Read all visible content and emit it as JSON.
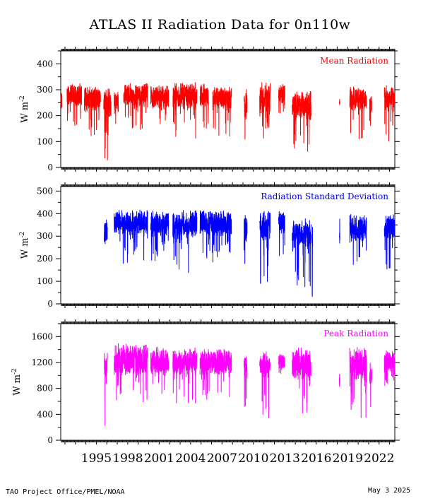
{
  "title": "ATLAS II Radiation Data for 0n110w",
  "footer": {
    "left": "TAO Project Office/PMEL/NOAA",
    "right": "May  3 2025"
  },
  "colors": {
    "mean": "#ff0000",
    "std": "#0000ff",
    "peak": "#ff00ff"
  },
  "chart_data": [
    {
      "type": "line",
      "title": "",
      "series": [
        {
          "name": "Mean Radiation",
          "color": "#ff0000"
        }
      ],
      "ylabel": "W m-2",
      "ylim": [
        0,
        450
      ],
      "yticks": [
        0,
        100,
        200,
        300,
        400
      ],
      "xlim": [
        1991.6,
        2023.5
      ],
      "segments": [
        [
          1991.6,
          1991.72,
          240,
          300,
          150
        ],
        [
          1992.2,
          1993.6,
          255,
          330,
          150
        ],
        [
          1993.85,
          1995.4,
          240,
          320,
          120
        ],
        [
          1995.7,
          1996.4,
          240,
          310,
          20
        ],
        [
          1996.7,
          1997.1,
          250,
          305,
          20
        ],
        [
          1997.6,
          1999.9,
          260,
          330,
          140
        ],
        [
          2000.2,
          2001.9,
          250,
          320,
          130
        ],
        [
          2002.3,
          2004.6,
          255,
          335,
          100
        ],
        [
          2004.9,
          2005.7,
          255,
          330,
          150
        ],
        [
          2006.1,
          2007.9,
          250,
          320,
          120
        ],
        [
          2009.1,
          2009.4,
          220,
          305,
          70
        ],
        [
          2010.6,
          2011.6,
          250,
          330,
          60
        ],
        [
          2012.4,
          2013.0,
          260,
          325,
          200
        ],
        [
          2013.7,
          2015.5,
          220,
          300,
          50
        ],
        [
          2018.2,
          2018.25,
          250,
          270,
          190
        ],
        [
          2019.2,
          2020.8,
          250,
          315,
          95
        ],
        [
          2021.1,
          2021.3,
          230,
          280,
          150
        ],
        [
          2022.5,
          2023.5,
          250,
          320,
          90
        ]
      ],
      "label_color": "#ff0000"
    },
    {
      "type": "line",
      "title": "",
      "series": [
        {
          "name": "Radiation Standard Deviation",
          "color": "#0000ff"
        }
      ],
      "ylabel": "W m-2",
      "ylim": [
        0,
        520
      ],
      "yticks": [
        0,
        100,
        200,
        300,
        400,
        500
      ],
      "xlim": [
        1991.6,
        2023.5
      ],
      "segments": [
        [
          1995.75,
          1996.05,
          320,
          410,
          20
        ],
        [
          1996.7,
          1999.9,
          340,
          420,
          170
        ],
        [
          2000.2,
          2001.9,
          330,
          415,
          170
        ],
        [
          2002.3,
          2004.6,
          330,
          420,
          130
        ],
        [
          2004.9,
          2007.9,
          330,
          420,
          180
        ],
        [
          2009.1,
          2009.4,
          300,
          400,
          110
        ],
        [
          2010.6,
          2011.6,
          330,
          420,
          80
        ],
        [
          2012.4,
          2013.0,
          340,
          420,
          210
        ],
        [
          2013.7,
          2015.5,
          300,
          380,
          70
        ],
        [
          2015.6,
          2015.65,
          300,
          360,
          20
        ],
        [
          2018.2,
          2018.25,
          300,
          380,
          20
        ],
        [
          2019.2,
          2020.8,
          320,
          400,
          130
        ],
        [
          2022.5,
          2023.5,
          330,
          400,
          150
        ]
      ],
      "label_color": "#0000ff"
    },
    {
      "type": "line",
      "title": "",
      "series": [
        {
          "name": "Peak Radiation",
          "color": "#ff00ff"
        }
      ],
      "ylabel": "W m-2",
      "ylim": [
        0,
        1800
      ],
      "yticks": [
        0,
        400,
        800,
        1200,
        1600
      ],
      "xlim": [
        1991.6,
        2023.5
      ],
      "segments": [
        [
          1995.75,
          1996.05,
          1100,
          1450,
          200
        ],
        [
          1996.7,
          1999.9,
          1120,
          1500,
          580
        ],
        [
          2000.2,
          2001.9,
          1100,
          1450,
          700
        ],
        [
          2002.3,
          2004.6,
          1120,
          1440,
          560
        ],
        [
          2004.9,
          2007.9,
          1120,
          1420,
          620
        ],
        [
          2009.1,
          2009.4,
          1050,
          1350,
          450
        ],
        [
          2010.6,
          2011.6,
          1150,
          1380,
          280
        ],
        [
          2012.4,
          2013.0,
          1120,
          1350,
          950
        ],
        [
          2013.7,
          2015.5,
          1050,
          1450,
          380
        ],
        [
          2018.2,
          2018.25,
          1000,
          1250,
          170
        ],
        [
          2019.2,
          2020.8,
          1080,
          1450,
          230
        ],
        [
          2021.1,
          2021.3,
          950,
          1200,
          300
        ],
        [
          2022.5,
          2023.5,
          1100,
          1400,
          800
        ]
      ],
      "label_color": "#ff00ff"
    }
  ],
  "xaxis": {
    "labels": [
      "1995",
      "1998",
      "2001",
      "2004",
      "2007",
      "2010",
      "2013",
      "2016",
      "2019",
      "2022"
    ],
    "label_years": [
      1995,
      1998,
      2001,
      2004,
      2007,
      2010,
      2013,
      2016,
      2019,
      2022
    ]
  }
}
